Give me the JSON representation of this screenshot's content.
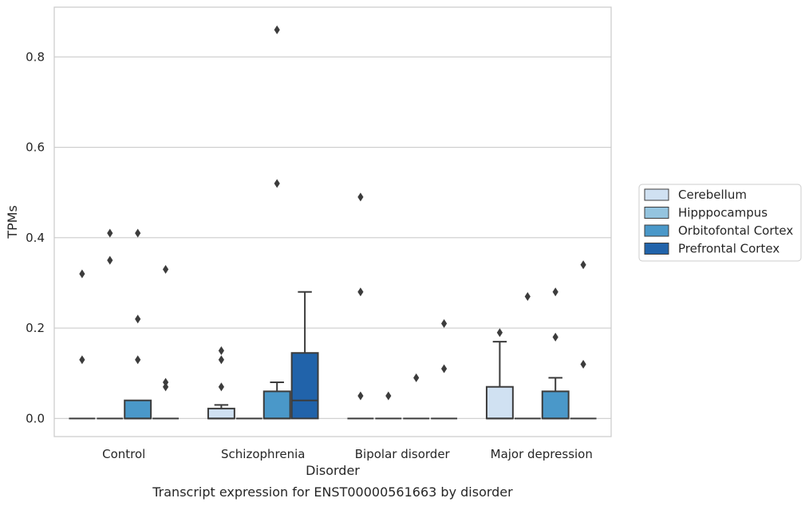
{
  "chart_data": {
    "type": "box",
    "caption": "Transcript expression for ENST00000561663 by disorder",
    "xlabel": "Disorder",
    "ylabel": "TPMs",
    "ylim": [
      -0.04,
      0.91
    ],
    "yticks": [
      "0.0",
      "0.2",
      "0.4",
      "0.6",
      "0.8"
    ],
    "ytick_values": [
      0.0,
      0.2,
      0.4,
      0.6,
      0.8
    ],
    "grid": "horizontal",
    "legend_position": "right",
    "categories": [
      "Control",
      "Schizophrenia",
      "Bipolar disorder",
      "Major depression"
    ],
    "series": [
      {
        "name": "Cerebellum",
        "color": "#d0e1f2",
        "boxes": [
          {
            "q1": 0,
            "median": 0,
            "q3": 0,
            "whisker_low": 0,
            "whisker_high": 0,
            "outliers": [
              0.13,
              0.32
            ]
          },
          {
            "q1": 0,
            "median": 0,
            "q3": 0.022,
            "whisker_low": 0,
            "whisker_high": 0.03,
            "outliers": [
              0.07,
              0.13,
              0.15
            ]
          },
          {
            "q1": 0,
            "median": 0,
            "q3": 0,
            "whisker_low": 0,
            "whisker_high": 0,
            "outliers": [
              0.05,
              0.28,
              0.49
            ]
          },
          {
            "q1": 0,
            "median": 0,
            "q3": 0.07,
            "whisker_low": 0,
            "whisker_high": 0.17,
            "outliers": [
              0.19
            ]
          }
        ]
      },
      {
        "name": "Hipppocampus",
        "color": "#94c4df",
        "boxes": [
          {
            "q1": 0,
            "median": 0,
            "q3": 0,
            "whisker_low": 0,
            "whisker_high": 0,
            "outliers": [
              0.35,
              0.41
            ]
          },
          {
            "q1": 0,
            "median": 0,
            "q3": 0,
            "whisker_low": 0,
            "whisker_high": 0,
            "outliers": []
          },
          {
            "q1": 0,
            "median": 0,
            "q3": 0,
            "whisker_low": 0,
            "whisker_high": 0,
            "outliers": [
              0.05
            ]
          },
          {
            "q1": 0,
            "median": 0,
            "q3": 0,
            "whisker_low": 0,
            "whisker_high": 0,
            "outliers": [
              0.27
            ]
          }
        ]
      },
      {
        "name": "Orbitofontal Cortex",
        "color": "#4a98c9",
        "boxes": [
          {
            "q1": 0,
            "median": 0,
            "q3": 0.04,
            "whisker_low": 0,
            "whisker_high": 0.04,
            "outliers": [
              0.13,
              0.22,
              0.41
            ]
          },
          {
            "q1": 0,
            "median": 0,
            "q3": 0.06,
            "whisker_low": 0,
            "whisker_high": 0.08,
            "outliers": [
              0.52,
              0.86
            ]
          },
          {
            "q1": 0,
            "median": 0,
            "q3": 0,
            "whisker_low": 0,
            "whisker_high": 0,
            "outliers": [
              0.09
            ]
          },
          {
            "q1": 0,
            "median": 0,
            "q3": 0.06,
            "whisker_low": 0,
            "whisker_high": 0.09,
            "outliers": [
              0.18,
              0.28
            ]
          }
        ]
      },
      {
        "name": "Prefrontal Cortex",
        "color": "#2163aa",
        "boxes": [
          {
            "q1": 0,
            "median": 0,
            "q3": 0,
            "whisker_low": 0,
            "whisker_high": 0,
            "outliers": [
              0.07,
              0.08,
              0.33
            ]
          },
          {
            "q1": 0,
            "median": 0.04,
            "q3": 0.145,
            "whisker_low": 0,
            "whisker_high": 0.28,
            "outliers": []
          },
          {
            "q1": 0,
            "median": 0,
            "q3": 0,
            "whisker_low": 0,
            "whisker_high": 0,
            "outliers": [
              0.11,
              0.21
            ]
          },
          {
            "q1": 0,
            "median": 0,
            "q3": 0,
            "whisker_low": 0,
            "whisker_high": 0,
            "outliers": [
              0.12,
              0.34
            ]
          }
        ]
      }
    ]
  }
}
